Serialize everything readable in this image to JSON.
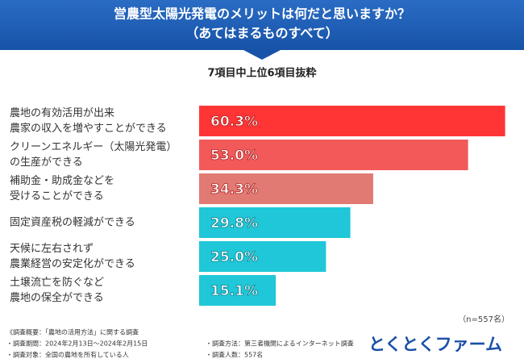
{
  "chart_data": {
    "type": "barh",
    "title": [
      "営農型太陽光発電のメリットは何だと思いますか？",
      "（あてはまるものすべて）"
    ],
    "subtitle": "7項目中上位6項目抜粋",
    "categories": [
      [
        "農地の有効活用が出来",
        "農家の収入を増やすことができる"
      ],
      [
        "クリーンエネルギー（太陽光発電）",
        "の生産ができる"
      ],
      [
        "補助金・助成金などを",
        "受けることができる"
      ],
      [
        "固定資産税の軽減ができる"
      ],
      [
        "天候に左右されず",
        "農業経営の安定化ができる"
      ],
      [
        "土壌流亡を防ぐなど",
        "農地の保全ができる"
      ]
    ],
    "values": [
      60.3,
      53.0,
      34.3,
      29.8,
      25.0,
      15.1
    ],
    "value_labels": [
      "60.3%",
      "53.0%",
      "34.3%",
      "29.8%",
      "25.0%",
      "15.1%"
    ],
    "colors": [
      "#ff3535",
      "#f25a5a",
      "#e07a72",
      "#1fc7d8",
      "#1fc7d8",
      "#1fc7d8"
    ],
    "xlim": [
      0,
      61
    ],
    "note": "（n=557名）",
    "footer_left": [
      "《調査概要：「農地の活用方法」に関する調査",
      "・調査期間：2024年2月13日～2024年2月15日",
      "・調査対象：全国の農地を所有している人"
    ],
    "footer_right": [
      "・調査方法：第三者機関によるインターネット調査",
      "・調査人数：557名"
    ],
    "logo": "とくとくファーム"
  }
}
